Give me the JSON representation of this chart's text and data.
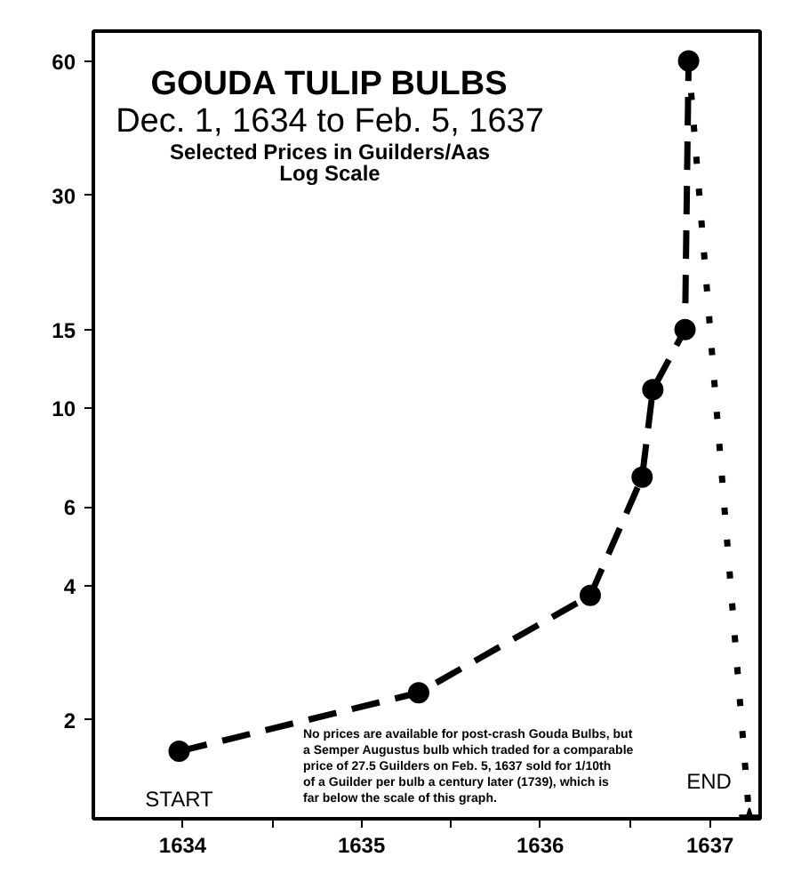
{
  "chart_data": {
    "type": "line",
    "title": "GOUDA TULIP BULBS",
    "subtitle": "Dec. 1, 1634 to Feb. 5, 1637\nSelected Prices in Guilders/Aas\nLog Scale",
    "log": "y",
    "grid": false,
    "xlim": [
      1634.0,
      1637.73
    ],
    "ylim": [
      1.2,
      70
    ],
    "xticks": [
      {
        "value": 1634.5,
        "label": "1634"
      },
      {
        "value": 1635,
        "label": null
      },
      {
        "value": 1635.5,
        "label": "1635"
      },
      {
        "value": 1636,
        "label": null
      },
      {
        "value": 1636.5,
        "label": "1636"
      },
      {
        "value": 1637,
        "label": null
      },
      {
        "value": 1637.45,
        "label": "1637"
      }
    ],
    "yticks": [
      2,
      4,
      6,
      10,
      15,
      30,
      60
    ],
    "series": [
      {
        "color": "#000000",
        "line_style": "dashed",
        "marker": "circle",
        "x": [
          1634.48,
          1635.82,
          1636.78,
          1637.07,
          1637.13,
          1637.31,
          1637.33
        ],
        "values": [
          1.7,
          2.3,
          3.8,
          7,
          11,
          15,
          60
        ]
      },
      {
        "type": "line",
        "color": "#000000",
        "line_style": "dotted",
        "marker": "none",
        "x": [
          1637.33,
          1637.67
        ],
        "values": [
          60,
          1.2
        ]
      },
      {
        "type": "scatter",
        "color": "#000000",
        "marker": "star",
        "x": [
          1637.67
        ],
        "values": [
          1.2
        ]
      }
    ],
    "annotations": [
      {
        "text": "START",
        "x": 1634.48,
        "y": 1.7
      },
      {
        "text": "END",
        "x": 1637.67,
        "y": 1.2
      },
      "No prices are available for post-crash Gouda Bulbs, but a Semper Augustus bulb which traded for a comparable price of 27.5 Guilders on Feb. 5, 1637 sold for 1/10th of a Guilder per bulb a century later (1739), which is far below the scale of this graph."
    ]
  }
}
